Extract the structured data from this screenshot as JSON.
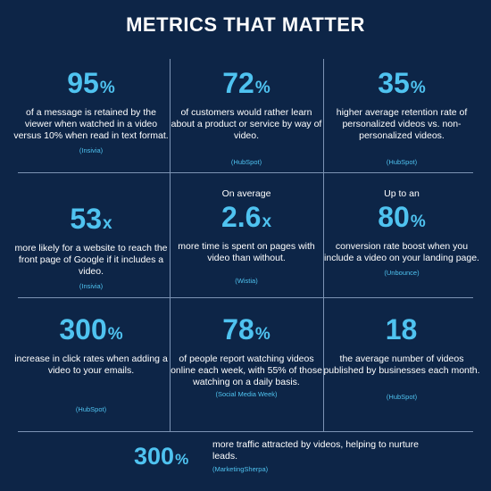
{
  "title": "METRICS THAT MATTER",
  "stats": [
    {
      "pre": "",
      "value": "95",
      "unit": "%",
      "desc": "of a message is retained by the viewer when watched in a video versus 10% when read in text format.",
      "source": "(Insivia)"
    },
    {
      "pre": "",
      "value": "72",
      "unit": "%",
      "desc": "of customers would rather learn about a product or service by way of video.",
      "source": "(HubSpot)"
    },
    {
      "pre": "",
      "value": "35",
      "unit": "%",
      "desc": "higher average retention rate of personalized videos vs. non-personalized videos.",
      "source": "(HubSpot)"
    },
    {
      "pre": "",
      "value": "53",
      "unit": "x",
      "desc": "more likely for a website to reach the front page of Google if it includes a video.",
      "source": "(Insivia)"
    },
    {
      "pre": "On average",
      "value": "2.6",
      "unit": "x",
      "desc": "more time is spent on pages with video than without.",
      "source": "(Wistia)"
    },
    {
      "pre": "Up to an",
      "value": "80",
      "unit": "%",
      "desc": "conversion rate boost when you include a video on your landing page.",
      "source": "(Unbounce)"
    },
    {
      "pre": "",
      "value": "300",
      "unit": "%",
      "desc": "increase in click rates when adding a video to your emails.",
      "source": "(HubSpot)"
    },
    {
      "pre": "",
      "value": "78",
      "unit": "%",
      "desc": "of people report watching videos online each week, with 55% of those watching on a daily basis.",
      "source": "(Social Media Week)"
    },
    {
      "pre": "",
      "value": "18",
      "unit": "",
      "desc": "the average number of videos published by businesses each month.",
      "source": "(HubSpot)"
    }
  ],
  "bottom": {
    "value": "300",
    "unit": "%",
    "desc": "more traffic attracted by videos, helping to nurture leads.",
    "source": "(MarketingSherpa)"
  }
}
